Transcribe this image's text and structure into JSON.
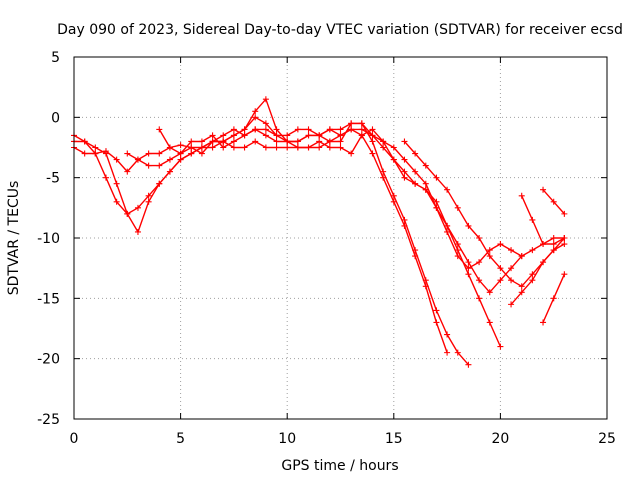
{
  "chart_data": {
    "type": "scatter",
    "title": "Day 090 of 2023, Sidereal Day-to-day VTEC variation (SDTVAR) for receiver ecsd",
    "xlabel": "GPS time / hours",
    "ylabel": "SDTVAR / TECUs",
    "xlim": [
      0,
      25
    ],
    "ylim": [
      -25,
      5
    ],
    "xticks": [
      "0",
      "5",
      "10",
      "15",
      "20",
      "25"
    ],
    "yticks": [
      "5",
      "0",
      "-5",
      "-10",
      "-15",
      "-20",
      "-25"
    ],
    "grid": true,
    "marker": "+",
    "color": "#ff0000",
    "series": [
      {
        "name": "trace-1",
        "x": [
          0.0,
          0.5,
          1.0,
          1.5,
          2.0,
          2.5,
          3.0,
          3.5,
          4.0,
          4.5,
          5.0,
          5.5,
          6.0,
          6.5,
          7.0,
          7.5,
          8.0,
          8.5,
          9.0,
          9.5,
          10.0,
          10.5,
          11.0,
          11.5,
          12.0,
          12.5,
          13.0,
          13.5,
          14.0,
          14.5,
          15.0,
          15.5,
          16.0,
          16.5,
          17.0,
          17.5,
          18.0,
          18.5
        ],
        "y": [
          -2.5,
          -3.0,
          -3.0,
          -2.8,
          -3.5,
          -4.5,
          -3.5,
          -3.0,
          -3.0,
          -2.5,
          -2.3,
          -2.5,
          -3.0,
          -2.0,
          -1.5,
          -1.0,
          -1.5,
          -1.0,
          -1.0,
          -1.5,
          -1.5,
          -1.0,
          -1.0,
          -1.5,
          -1.0,
          -1.0,
          -0.5,
          -0.5,
          -2.0,
          -4.5,
          -6.5,
          -8.5,
          -11.0,
          -13.5,
          -16.0,
          -18.0,
          -19.5,
          -20.5
        ]
      },
      {
        "name": "trace-2",
        "x": [
          0.0,
          0.5,
          1.0,
          1.5,
          2.0,
          2.5,
          3.0,
          3.5,
          4.0,
          4.5,
          5.0,
          5.5,
          6.0,
          6.5,
          7.0,
          7.5,
          8.0,
          8.5,
          9.0,
          9.5,
          10.0,
          10.5,
          11.0,
          11.5,
          12.0,
          12.5,
          13.0,
          13.5,
          14.0,
          14.5,
          15.0,
          15.5,
          16.0,
          16.5,
          17.0,
          17.5
        ],
        "y": [
          -1.5,
          -2.0,
          -2.5,
          -3.0,
          -5.5,
          -8.0,
          -9.5,
          -7.0,
          -5.5,
          -4.5,
          -3.5,
          -3.0,
          -2.5,
          -2.5,
          -2.0,
          -1.5,
          -1.0,
          0.5,
          1.5,
          -1.0,
          -2.0,
          -2.0,
          -1.5,
          -1.5,
          -2.0,
          -1.5,
          -1.0,
          -1.5,
          -3.0,
          -5.0,
          -7.0,
          -9.0,
          -11.5,
          -14.0,
          -17.0,
          -19.5
        ]
      },
      {
        "name": "trace-3",
        "x": [
          0.0,
          0.5,
          1.0,
          1.5,
          2.0,
          2.5,
          3.0,
          3.5,
          4.0,
          4.5,
          5.0,
          5.5,
          6.0,
          6.5,
          7.0,
          7.5,
          8.0,
          8.5,
          9.0,
          9.5,
          10.0,
          10.5,
          11.0,
          11.5,
          12.0,
          12.5,
          13.0,
          13.5,
          14.0,
          14.5,
          15.0,
          15.5,
          16.0,
          16.5,
          17.0,
          17.5,
          18.0,
          18.5,
          19.0,
          19.5,
          20.0
        ],
        "y": [
          -2.0,
          -2.0,
          -3.0,
          -5.0,
          -7.0,
          -8.0,
          -7.5,
          -6.5,
          -5.5,
          -4.5,
          -3.5,
          -3.0,
          -2.5,
          -2.0,
          -2.0,
          -2.5,
          -2.5,
          -2.0,
          -2.5,
          -2.5,
          -2.5,
          -2.5,
          -2.5,
          -2.0,
          -2.5,
          -2.5,
          -3.0,
          -1.5,
          -1.0,
          -2.0,
          -3.5,
          -5.0,
          -5.5,
          -6.0,
          -7.0,
          -9.0,
          -11.0,
          -13.0,
          -15.0,
          -17.0,
          -19.0
        ]
      },
      {
        "name": "trace-4",
        "x": [
          2.5,
          3.0,
          3.5,
          4.0,
          4.5,
          5.0,
          5.5,
          6.0,
          6.5,
          7.0,
          7.5,
          8.0,
          8.5,
          9.0,
          9.5,
          10.0,
          10.5,
          11.0,
          11.5,
          12.0,
          12.5,
          13.0,
          13.5,
          14.0,
          14.5,
          15.0,
          15.5,
          16.0,
          16.5,
          17.0,
          17.5,
          18.0,
          18.5,
          19.0,
          19.5,
          20.0,
          20.5,
          21.0
        ],
        "y": [
          -3.0,
          -3.5,
          -4.0,
          -4.0,
          -3.5,
          -3.0,
          -2.5,
          -2.5,
          -2.0,
          -2.0,
          -1.5,
          -1.0,
          0.0,
          -0.5,
          -1.5,
          -2.0,
          -2.0,
          -1.5,
          -1.5,
          -1.0,
          -1.5,
          -1.0,
          -1.0,
          -1.5,
          -2.5,
          -3.5,
          -4.5,
          -5.5,
          -6.0,
          -7.5,
          -9.0,
          -10.5,
          -12.0,
          -13.5,
          -14.5,
          -13.5,
          -12.5,
          -11.5
        ]
      },
      {
        "name": "trace-5",
        "x": [
          4.0,
          4.5,
          5.0,
          5.5,
          6.0,
          6.5,
          7.0,
          7.5,
          8.0,
          8.5,
          9.0,
          9.5,
          10.0,
          10.5,
          11.0,
          11.5,
          12.0,
          12.5,
          13.0,
          13.5,
          14.0,
          14.5,
          15.0,
          15.5,
          16.0,
          16.5,
          17.0,
          17.5,
          18.0,
          18.5,
          19.0,
          19.5,
          20.0,
          20.5,
          21.0,
          21.5,
          22.0,
          22.5,
          23.0
        ],
        "y": [
          -1.0,
          -2.5,
          -3.0,
          -2.0,
          -2.0,
          -1.5,
          -2.5,
          -2.0,
          -1.5,
          -1.0,
          -1.5,
          -2.0,
          -2.0,
          -2.5,
          -2.5,
          -2.5,
          -2.0,
          -2.0,
          -0.5,
          -0.5,
          -1.5,
          -2.0,
          -2.5,
          -3.5,
          -4.5,
          -5.5,
          -7.5,
          -9.5,
          -11.5,
          -12.5,
          -12.0,
          -11.0,
          -10.5,
          -11.0,
          -11.5,
          -11.0,
          -10.5,
          -10.0,
          -10.0
        ]
      },
      {
        "name": "trace-6",
        "x": [
          15.5,
          16.0,
          16.5,
          17.0,
          17.5,
          18.0,
          18.5,
          19.0,
          19.5,
          20.0,
          20.5,
          21.0,
          21.5,
          22.0,
          22.5,
          23.0
        ],
        "y": [
          -2.0,
          -3.0,
          -4.0,
          -5.0,
          -6.0,
          -7.5,
          -9.0,
          -10.0,
          -11.5,
          -12.5,
          -13.5,
          -14.0,
          -13.0,
          -12.0,
          -11.0,
          -10.5
        ]
      },
      {
        "name": "trace-7",
        "x": [
          20.5,
          21.0,
          21.5,
          22.0,
          22.5,
          23.0
        ],
        "y": [
          -15.5,
          -14.5,
          -13.5,
          -12.0,
          -11.0,
          -10.0
        ]
      },
      {
        "name": "trace-8",
        "x": [
          22.0,
          22.5,
          23.0
        ],
        "y": [
          -17.0,
          -15.0,
          -13.0
        ]
      },
      {
        "name": "trace-9",
        "x": [
          21.0,
          21.5,
          22.0,
          22.5,
          23.0
        ],
        "y": [
          -6.5,
          -8.5,
          -10.5,
          -10.5,
          -10.0
        ]
      },
      {
        "name": "trace-10",
        "x": [
          22.0,
          22.5,
          23.0
        ],
        "y": [
          -6.0,
          -7.0,
          -8.0
        ]
      }
    ]
  }
}
